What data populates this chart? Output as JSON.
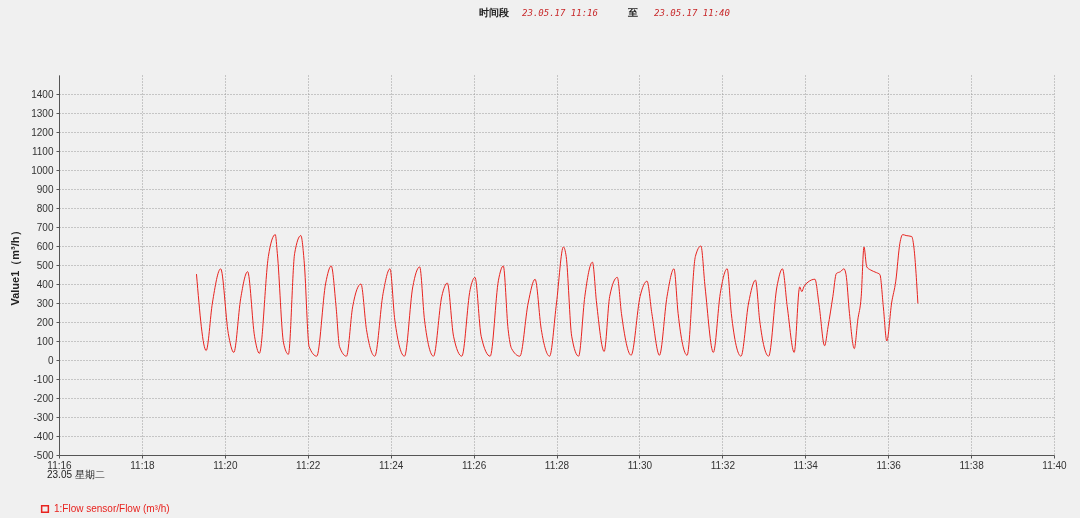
{
  "chart_data": {
    "type": "line",
    "title": "时间段",
    "ylabel": "Value1（m³/h）",
    "annotations": [
      "23.05.17 11:16",
      "至",
      "23.05.17 11:40",
      "23.05 星期二"
    ],
    "x": [
      "--05-23T11:19:19",
      "--05-23T11:19:33",
      "--05-23T11:19:42",
      "--05-23T11:19:54",
      "--05-23T11:20:05",
      "--05-23T11:20:13",
      "--05-23T11:20:23",
      "--05-23T11:20:33",
      "--05-23T11:20:43",
      "--05-23T11:20:50",
      "--05-23T11:21:03",
      "--05-23T11:21:13",
      "--05-23T11:21:16",
      "--05-23T11:21:25",
      "--05-23T11:21:32",
      "--05-23T11:21:41",
      "--05-23T11:21:50",
      "--05-23T11:21:55",
      "--05-23T11:22:02",
      "--05-23T11:22:13",
      "--05-23T11:22:26",
      "--05-23T11:22:34",
      "--05-23T11:22:41",
      "--05-23T11:22:46",
      "--05-23T11:22:56",
      "--05-23T11:23:05",
      "--05-23T11:23:17",
      "--05-23T11:23:25",
      "--05-23T11:23:37",
      "--05-23T11:23:49",
      "--05-23T11:23:59",
      "--05-23T11:24:06",
      "--05-23T11:24:20",
      "--05-23T11:24:32",
      "--05-23T11:24:42",
      "--05-23T11:24:49",
      "--05-23T11:25:02",
      "--05-23T11:25:14",
      "--05-23T11:25:22",
      "--05-23T11:25:31",
      "--05-23T11:25:43",
      "--05-23T11:25:55",
      "--05-23T11:26:02",
      "--05-23T11:26:11",
      "--05-23T11:26:24",
      "--05-23T11:26:36",
      "--05-23T11:26:43",
      "--05-23T11:26:50",
      "--05-23T11:26:55",
      "--05-23T11:27:07",
      "--05-23T11:27:19",
      "--05-23T11:27:29",
      "--05-23T11:27:38",
      "--05-23T11:27:50",
      "--05-23T11:28:00",
      "--05-23T11:28:10",
      "--05-23T11:28:14",
      "--05-23T11:28:22",
      "--05-23T11:28:32",
      "--05-23T11:28:41",
      "--05-23T11:28:52",
      "--05-23T11:28:58",
      "--05-23T11:29:09",
      "--05-23T11:29:17",
      "--05-23T11:29:28",
      "--05-23T11:29:34",
      "--05-23T11:29:48",
      "--05-23T11:30:01",
      "--05-23T11:30:11",
      "--05-23T11:30:18",
      "--05-23T11:30:29",
      "--05-23T11:30:40",
      "--05-23T11:30:50",
      "--05-23T11:30:56",
      "--05-23T11:31:09",
      "--05-23T11:31:21",
      "--05-23T11:31:29",
      "--05-23T11:31:35",
      "--05-23T11:31:47",
      "--05-23T11:31:57",
      "--05-23T11:32:07",
      "--05-23T11:32:13",
      "--05-23T11:32:27",
      "--05-23T11:32:38",
      "--05-23T11:32:48",
      "--05-23T11:32:54",
      "--05-23T11:33:07",
      "--05-23T11:33:19",
      "--05-23T11:33:27",
      "--05-23T11:33:34",
      "--05-23T11:33:44",
      "--05-23T11:33:52",
      "--05-23T11:33:55",
      "--05-23T11:33:58",
      "--05-23T11:34:04",
      "--05-23T11:34:14",
      "--05-23T11:34:20",
      "--05-23T11:34:28",
      "--05-23T11:34:33",
      "--05-23T11:34:40",
      "--05-23T11:34:45",
      "--05-23T11:34:51",
      "--05-23T11:34:56",
      "--05-23T11:34:59",
      "--05-23T11:35:04",
      "--05-23T11:35:11",
      "--05-23T11:35:16",
      "--05-23T11:35:21",
      "--05-23T11:35:25",
      "--05-23T11:35:29",
      "--05-23T11:35:34",
      "--05-23T11:35:43",
      "--05-23T11:35:48",
      "--05-23T11:35:53",
      "--05-23T11:35:58",
      "--05-23T11:36:05",
      "--05-23T11:36:11",
      "--05-23T11:36:17",
      "--05-23T11:36:21",
      "--05-23T11:36:26",
      "--05-23T11:36:34",
      "--05-23T11:36:37",
      "--05-23T11:36:43"
    ],
    "series": [
      {
        "name": "1:Flow sensor/Flow (m³/h)",
        "color": "#e8231f",
        "values": [
          450,
          50,
          300,
          480,
          140,
          40,
          325,
          465,
          125,
          35,
          545,
          660,
          560,
          90,
          30,
          560,
          655,
          510,
          70,
          20,
          405,
          495,
          280,
          70,
          20,
          280,
          400,
          160,
          20,
          350,
          480,
          210,
          20,
          385,
          490,
          210,
          20,
          335,
          405,
          125,
          20,
          370,
          435,
          125,
          20,
          420,
          495,
          160,
          60,
          20,
          300,
          425,
          160,
          20,
          300,
          595,
          545,
          125,
          20,
          335,
          515,
          300,
          45,
          335,
          435,
          245,
          25,
          335,
          415,
          245,
          25,
          335,
          480,
          245,
          25,
          545,
          600,
          385,
          40,
          350,
          480,
          245,
          20,
          300,
          420,
          210,
          20,
          385,
          480,
          280,
          40,
          385,
          360,
          385,
          410,
          425,
          290,
          75,
          175,
          335,
          455,
          465,
          480,
          450,
          245,
          60,
          210,
          335,
          595,
          490,
          475,
          460,
          450,
          280,
          100,
          300,
          415,
          615,
          660,
          655,
          650,
          600,
          300
        ]
      }
    ],
    "xlim": [
      "--05-23T11:16",
      "--05-23T11:40"
    ],
    "xticks": [
      {
        "value": "--05-23T11:16",
        "label": "11:16"
      },
      {
        "value": "--05-23T11:18",
        "label": "11:18"
      },
      {
        "value": "--05-23T11:20",
        "label": "11:20"
      },
      {
        "value": "--05-23T11:22",
        "label": "11:22"
      },
      {
        "value": "--05-23T11:24",
        "label": "11:24"
      },
      {
        "value": "--05-23T11:26",
        "label": "11:26"
      },
      {
        "value": "--05-23T11:28",
        "label": "11:28"
      },
      {
        "value": "--05-23T11:30",
        "label": "11:30"
      },
      {
        "value": "--05-23T11:32",
        "label": "11:32"
      },
      {
        "value": "--05-23T11:34",
        "label": "11:34"
      },
      {
        "value": "--05-23T11:36",
        "label": "11:36"
      },
      {
        "value": "--05-23T11:38",
        "label": "11:38"
      },
      {
        "value": "--05-23T11:40",
        "label": "11:40"
      }
    ],
    "ylim": [
      -500,
      1500
    ],
    "yticks": [
      -500,
      -400,
      -300,
      -200,
      -100,
      0,
      100,
      200,
      300,
      400,
      500,
      600,
      700,
      800,
      900,
      1000,
      1100,
      1200,
      1300,
      1400
    ],
    "grid": true,
    "legend": "bottom left",
    "line_style": "solid"
  }
}
